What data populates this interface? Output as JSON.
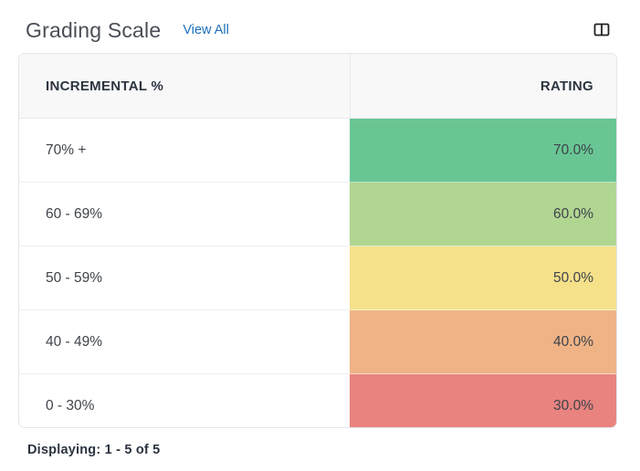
{
  "header": {
    "title": "Grading Scale",
    "view_all": "View All",
    "toggle_icon": "panel-layout-icon"
  },
  "table": {
    "columns": [
      "INCREMENTAL %",
      "RATING"
    ],
    "rows": [
      {
        "range": "70% +",
        "rating": "70.0%",
        "color": "#69c694"
      },
      {
        "range": "60 - 69%",
        "rating": "60.0%",
        "color": "#b1d692"
      },
      {
        "range": "50 - 59%",
        "rating": "50.0%",
        "color": "#f6e18b"
      },
      {
        "range": "40 - 49%",
        "rating": "40.0%",
        "color": "#efb386"
      },
      {
        "range": "0 - 30%",
        "rating": "30.0%",
        "color": "#e9837f"
      }
    ]
  },
  "footer": {
    "displaying": "Displaying: 1 - 5 of 5"
  }
}
